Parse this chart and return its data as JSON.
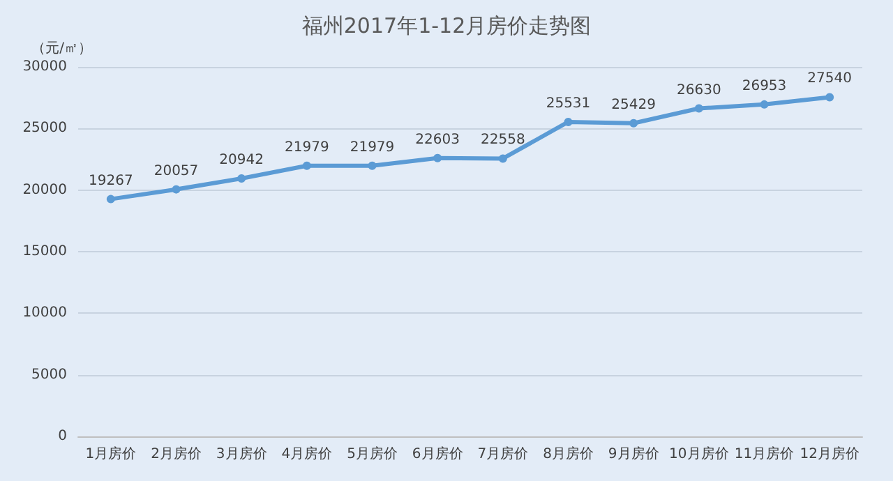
{
  "chart_data": {
    "type": "line",
    "title": "福州2017年1-12月房价走势图",
    "ylabel": "（元/㎡）",
    "categories": [
      "1月房价",
      "2月房价",
      "3月房价",
      "4月房价",
      "5月房价",
      "6月房价",
      "7月房价",
      "8月房价",
      "9月房价",
      "10月房价",
      "11月房价",
      "12月房价"
    ],
    "series": [
      {
        "color": "#5b9bd5",
        "values": [
          19267,
          20057,
          20942,
          21979,
          21979,
          22603,
          22558,
          25531,
          25429,
          26630,
          26953,
          27540
        ]
      }
    ],
    "ylim": [
      0,
      30000
    ],
    "yticks": [
      0,
      5000,
      10000,
      15000,
      20000,
      25000,
      30000
    ],
    "grid": "y",
    "marker": "circle",
    "line_style": "solid",
    "data_labels": true
  }
}
